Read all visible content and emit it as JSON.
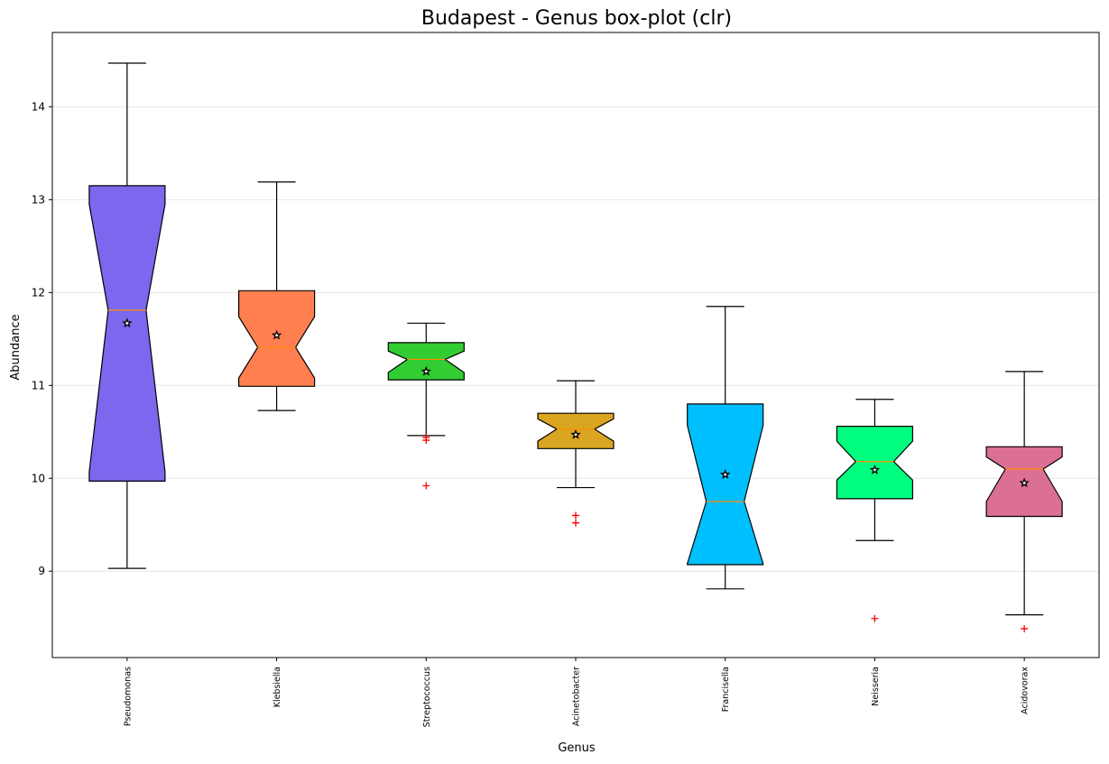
{
  "chart_data": {
    "type": "boxplot",
    "title": "Budapest - Genus box-plot (clr)",
    "xlabel": "Genus",
    "ylabel": "Abundance",
    "ylim": [
      8.07,
      14.8
    ],
    "yticks": [
      9,
      10,
      11,
      12,
      13,
      14
    ],
    "grid": "y",
    "notched": true,
    "mean_marker": "star",
    "outlier_marker": "+",
    "outlier_color": "#ff0000",
    "median_color": "#ff8c00",
    "categories": [
      "Pseudomonas",
      "Klebsiella",
      "Streptococcus",
      "Acinetobacter",
      "Francisella",
      "Neisseria",
      "Acidovorax"
    ],
    "boxes": [
      {
        "label": "Pseudomonas",
        "color": "#7b68ee",
        "whisker_low": 9.03,
        "q1": 9.97,
        "median": 11.81,
        "q3": 13.15,
        "whisker_high": 14.47,
        "mean": 11.67,
        "notch_low": 10.07,
        "notch_high": 12.95,
        "outliers": []
      },
      {
        "label": "Klebsiella",
        "color": "#ff7f50",
        "whisker_low": 10.73,
        "q1": 10.99,
        "median": 11.41,
        "q3": 12.02,
        "whisker_high": 13.19,
        "mean": 11.54,
        "notch_low": 11.08,
        "notch_high": 11.74,
        "outliers": []
      },
      {
        "label": "Streptococcus",
        "color": "#32cd32",
        "whisker_low": 10.46,
        "q1": 11.06,
        "median": 11.28,
        "q3": 11.46,
        "whisker_high": 11.67,
        "mean": 11.15,
        "notch_low": 11.14,
        "notch_high": 11.37,
        "outliers": [
          10.44,
          10.41,
          9.92
        ]
      },
      {
        "label": "Acinetobacter",
        "color": "#daa520",
        "whisker_low": 9.9,
        "q1": 10.32,
        "median": 10.53,
        "q3": 10.7,
        "whisker_high": 11.05,
        "mean": 10.47,
        "notch_low": 10.4,
        "notch_high": 10.64,
        "outliers": [
          9.6,
          9.52
        ]
      },
      {
        "label": "Francisella",
        "color": "#00bfff",
        "whisker_low": 8.81,
        "q1": 9.07,
        "median": 9.75,
        "q3": 10.8,
        "whisker_high": 11.85,
        "mean": 10.04,
        "notch_low": 9.08,
        "notch_high": 10.57,
        "outliers": []
      },
      {
        "label": "Neisseria",
        "color": "#00ff7f",
        "whisker_low": 9.33,
        "q1": 9.78,
        "median": 10.18,
        "q3": 10.56,
        "whisker_high": 10.85,
        "mean": 10.09,
        "notch_low": 9.98,
        "notch_high": 10.4,
        "outliers": [
          8.49
        ]
      },
      {
        "label": "Acidovorax",
        "color": "#db7093",
        "whisker_low": 8.53,
        "q1": 9.59,
        "median": 10.1,
        "q3": 10.34,
        "whisker_high": 11.15,
        "mean": 9.95,
        "notch_low": 9.75,
        "notch_high": 10.23,
        "outliers": [
          8.38
        ]
      }
    ]
  }
}
